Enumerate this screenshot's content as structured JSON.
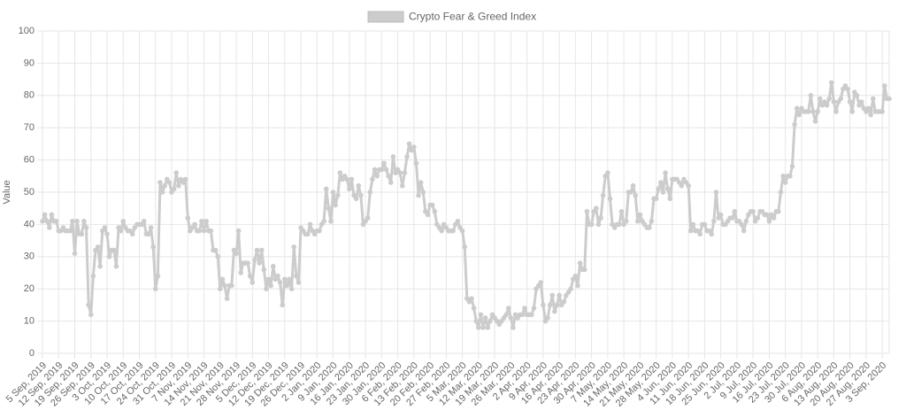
{
  "chart_data": {
    "type": "line",
    "y_label": "Value",
    "ylim": [
      0,
      100
    ],
    "yticks": [
      0,
      10,
      20,
      30,
      40,
      50,
      60,
      70,
      80,
      90,
      100
    ],
    "grid": true,
    "legend": "top",
    "categories": [
      "5 Sep, 2019",
      null,
      null,
      null,
      null,
      null,
      null,
      "12 Sep, 2019",
      null,
      null,
      null,
      null,
      null,
      null,
      "19 Sep, 2019",
      null,
      null,
      null,
      null,
      null,
      null,
      "26 Sep, 2019",
      null,
      null,
      null,
      null,
      null,
      null,
      "3 Oct, 2019",
      null,
      null,
      null,
      null,
      null,
      null,
      "10 Oct, 2019",
      null,
      null,
      null,
      null,
      null,
      null,
      "17 Oct, 2019",
      null,
      null,
      null,
      null,
      null,
      null,
      "24 Oct, 2019",
      null,
      null,
      null,
      null,
      null,
      null,
      "31 Oct, 2019",
      null,
      null,
      null,
      null,
      null,
      null,
      "7 Nov, 2019",
      null,
      null,
      null,
      null,
      null,
      null,
      "14 Nov, 2019",
      null,
      null,
      null,
      null,
      null,
      null,
      "21 Nov, 2019",
      null,
      null,
      null,
      null,
      null,
      null,
      "28 Nov, 2019",
      null,
      null,
      null,
      null,
      null,
      null,
      "5 Dec, 2019",
      null,
      null,
      null,
      null,
      null,
      null,
      "12 Dec, 2019",
      null,
      null,
      null,
      null,
      null,
      null,
      "19 Dec, 2019",
      null,
      null,
      null,
      null,
      null,
      null,
      "26 Dec, 2019",
      null,
      null,
      null,
      null,
      null,
      null,
      "2 Jan, 2020",
      null,
      null,
      null,
      null,
      null,
      null,
      "9 Jan, 2020",
      null,
      null,
      null,
      null,
      null,
      null,
      "16 Jan, 2020",
      null,
      null,
      null,
      null,
      null,
      null,
      "23 Jan, 2020",
      null,
      null,
      null,
      null,
      null,
      null,
      "30 Jan, 2020",
      null,
      null,
      null,
      null,
      null,
      null,
      "6 Feb, 2020",
      null,
      null,
      null,
      null,
      null,
      null,
      "13 Feb, 2020",
      null,
      null,
      null,
      null,
      null,
      null,
      "20 Feb, 2020",
      null,
      null,
      null,
      null,
      null,
      null,
      "27 Feb, 2020",
      null,
      null,
      null,
      null,
      null,
      null,
      "5 Mar, 2020",
      null,
      null,
      null,
      null,
      null,
      null,
      "12 Mar, 2020",
      null,
      null,
      null,
      null,
      null,
      null,
      "19 Mar, 2020",
      null,
      null,
      null,
      null,
      null,
      null,
      "26 Mar, 2020",
      null,
      null,
      null,
      null,
      null,
      null,
      "2 Apr, 2020",
      null,
      null,
      null,
      null,
      null,
      null,
      "9 Apr, 2020",
      null,
      null,
      null,
      null,
      null,
      null,
      "16 Apr, 2020",
      null,
      null,
      null,
      null,
      null,
      null,
      "23 Apr, 2020",
      null,
      null,
      null,
      null,
      null,
      null,
      "30 Apr, 2020",
      null,
      null,
      null,
      null,
      null,
      null,
      "7 May, 2020",
      null,
      null,
      null,
      null,
      null,
      null,
      "14 May, 2020",
      null,
      null,
      null,
      null,
      null,
      null,
      "21 May, 2020",
      null,
      null,
      null,
      null,
      null,
      null,
      "28 May, 2020",
      null,
      null,
      null,
      null,
      null,
      null,
      "4 Jun, 2020",
      null,
      null,
      null,
      null,
      null,
      null,
      "11 Jun, 2020",
      null,
      null,
      null,
      null,
      null,
      null,
      "18 Jun, 2020",
      null,
      null,
      null,
      null,
      null,
      null,
      "25 Jun, 2020",
      null,
      null,
      null,
      null,
      null,
      null,
      "2 Jul, 2020",
      null,
      null,
      null,
      null,
      null,
      null,
      "9 Jul, 2020",
      null,
      null,
      null,
      null,
      null,
      null,
      "16 Jul, 2020",
      null,
      null,
      null,
      null,
      null,
      null,
      "23 Jul, 2020",
      null,
      null,
      null,
      null,
      null,
      null,
      "30 Jul, 2020",
      null,
      null,
      null,
      null,
      null,
      null,
      "6 Aug, 2020",
      null,
      null,
      null,
      null,
      null,
      null,
      "13 Aug, 2020",
      null,
      null,
      null,
      null,
      null,
      null,
      "20 Aug, 2020",
      null,
      null,
      null,
      null,
      null,
      null,
      "27 Aug, 2020",
      null,
      null,
      null,
      null,
      null,
      null,
      "3 Sep, 2020",
      null,
      null,
      null
    ],
    "series": [
      {
        "name": "Crypto Fear & Greed Index",
        "color": "#cccccc",
        "values": [
          41,
          43,
          41,
          39,
          43,
          41,
          41,
          38,
          38,
          39,
          38,
          38,
          38,
          41,
          31,
          41,
          37,
          37,
          41,
          39,
          15,
          12,
          24,
          32,
          33,
          27,
          38,
          39,
          37,
          30,
          32,
          32,
          27,
          39,
          38,
          41,
          39,
          38,
          38,
          37,
          39,
          40,
          40,
          40,
          41,
          37,
          37,
          39,
          33,
          20,
          24,
          53,
          50,
          52,
          54,
          53,
          50,
          51,
          56,
          52,
          54,
          53,
          54,
          42,
          38,
          39,
          40,
          38,
          38,
          41,
          38,
          41,
          38,
          38,
          32,
          32,
          30,
          20,
          23,
          21,
          17,
          21,
          21,
          32,
          31,
          38,
          25,
          28,
          28,
          28,
          24,
          22,
          29,
          32,
          28,
          32,
          26,
          20,
          23,
          21,
          27,
          23,
          24,
          22,
          15,
          23,
          21,
          23,
          20,
          33,
          24,
          22,
          39,
          38,
          37,
          37,
          40,
          38,
          37,
          38,
          38,
          40,
          41,
          51,
          45,
          41,
          50,
          46,
          49,
          56,
          54,
          55,
          54,
          51,
          54,
          49,
          48,
          52,
          49,
          40,
          41,
          42,
          50,
          54,
          57,
          55,
          57,
          57,
          59,
          57,
          55,
          53,
          61,
          56,
          57,
          56,
          52,
          56,
          61,
          65,
          63,
          64,
          59,
          49,
          53,
          50,
          44,
          43,
          46,
          46,
          44,
          40,
          39,
          38,
          40,
          39,
          38,
          38,
          38,
          40,
          41,
          39,
          38,
          33,
          17,
          16,
          17,
          14,
          10,
          8,
          12,
          8,
          11,
          8,
          10,
          12,
          11,
          10,
          9,
          10,
          11,
          12,
          14,
          11,
          8,
          12,
          11,
          12,
          12,
          14,
          12,
          12,
          12,
          14,
          20,
          21,
          22,
          15,
          10,
          11,
          15,
          18,
          13,
          15,
          18,
          15,
          16,
          18,
          19,
          20,
          23,
          24,
          21,
          28,
          26,
          26,
          44,
          40,
          40,
          44,
          45,
          40,
          42,
          49,
          55,
          56,
          48,
          40,
          39,
          40,
          40,
          44,
          40,
          41,
          50,
          50,
          52,
          49,
          41,
          43,
          41,
          40,
          39,
          39,
          41,
          48,
          48,
          51,
          53,
          50,
          56,
          51,
          48,
          54,
          54,
          54,
          53,
          52,
          54,
          53,
          52,
          38,
          40,
          38,
          38,
          37,
          40,
          40,
          38,
          38,
          37,
          41,
          50,
          42,
          43,
          40,
          40,
          41,
          42,
          42,
          44,
          41,
          41,
          40,
          38,
          41,
          43,
          44,
          44,
          41,
          42,
          44,
          44,
          43,
          43,
          41,
          43,
          42,
          44,
          44,
          50,
          55,
          53,
          55,
          55,
          58,
          71,
          76,
          74,
          76,
          75,
          75,
          75,
          80,
          75,
          72,
          75,
          79,
          77,
          78,
          77,
          79,
          84,
          78,
          75,
          78,
          79,
          82,
          83,
          82,
          78,
          75,
          81,
          80,
          77,
          78,
          76,
          75,
          76,
          74,
          79,
          75,
          75,
          75,
          75,
          83,
          79,
          79
        ]
      }
    ]
  }
}
